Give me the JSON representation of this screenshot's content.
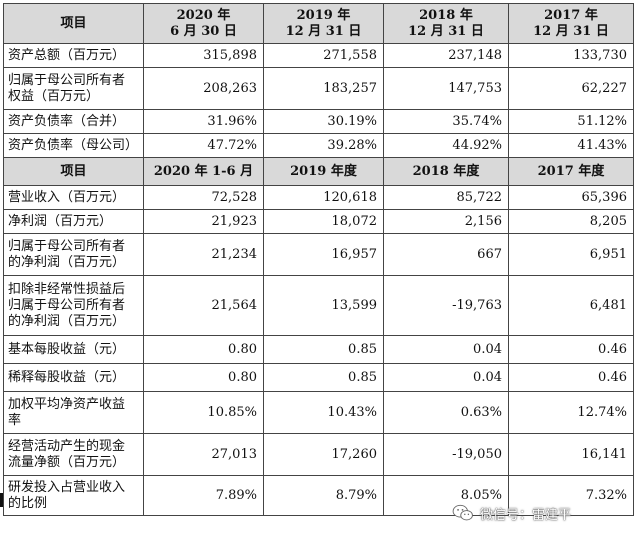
{
  "header1": [
    "项目",
    "2020 年\n6 月 30 日",
    "2019 年\n12 月 31 日",
    "2018 年\n12 月 31 日",
    "2017 年\n12 月 31 日"
  ],
  "balance_rows": [
    {
      "label": "资产总额（百万元）",
      "values": [
        "315,898",
        "271,558",
        "237,148",
        "133,730"
      ]
    },
    {
      "label": "归属于母公司所有者权益（百万元）",
      "values": [
        "208,263",
        "183,257",
        "147,753",
        "62,227"
      ]
    },
    {
      "label": "资产负债率（合并）",
      "values": [
        "31.96%",
        "30.19%",
        "35.74%",
        "51.12%"
      ]
    },
    {
      "label": "资产负债率（母公司）",
      "values": [
        "47.72%",
        "39.28%",
        "44.92%",
        "41.43%"
      ]
    }
  ],
  "header2": [
    "项目",
    "2020 年 1-6 月",
    "2019 年度",
    "2018 年度",
    "2017 年度"
  ],
  "income_rows": [
    {
      "label": "营业收入（百万元）",
      "values": [
        "72,528",
        "120,618",
        "85,722",
        "65,396"
      ]
    },
    {
      "label": "净利润（百万元）",
      "values": [
        "21,923",
        "18,072",
        "2,156",
        "8,205"
      ]
    },
    {
      "label": "归属于母公司所有者的净利润（百万元）",
      "values": [
        "21,234",
        "16,957",
        "667",
        "6,951"
      ]
    },
    {
      "label": "扣除非经常性损益后归属于母公司所有者的净利润（百万元）",
      "values": [
        "21,564",
        "13,599",
        "-19,763",
        "6,481"
      ]
    },
    {
      "label": "基本每股收益（元）",
      "values": [
        "0.80",
        "0.85",
        "0.04",
        "0.46"
      ]
    },
    {
      "label": "稀释每股收益（元）",
      "values": [
        "0.80",
        "0.85",
        "0.04",
        "0.46"
      ]
    },
    {
      "label": "加权平均净资产收益率",
      "values": [
        "10.85%",
        "10.43%",
        "0.63%",
        "12.74%"
      ]
    },
    {
      "label": "经营活动产生的现金流量净额（百万元）",
      "values": [
        "27,013",
        "17,260",
        "-19,050",
        "16,141"
      ]
    },
    {
      "label": "研发投入占营业收入的比例",
      "values": [
        "7.89%",
        "8.79%",
        "8.05%",
        "7.32%"
      ]
    }
  ],
  "watermark": {
    "text": "微信号：雷建平",
    "icon": "wechat-icon"
  }
}
